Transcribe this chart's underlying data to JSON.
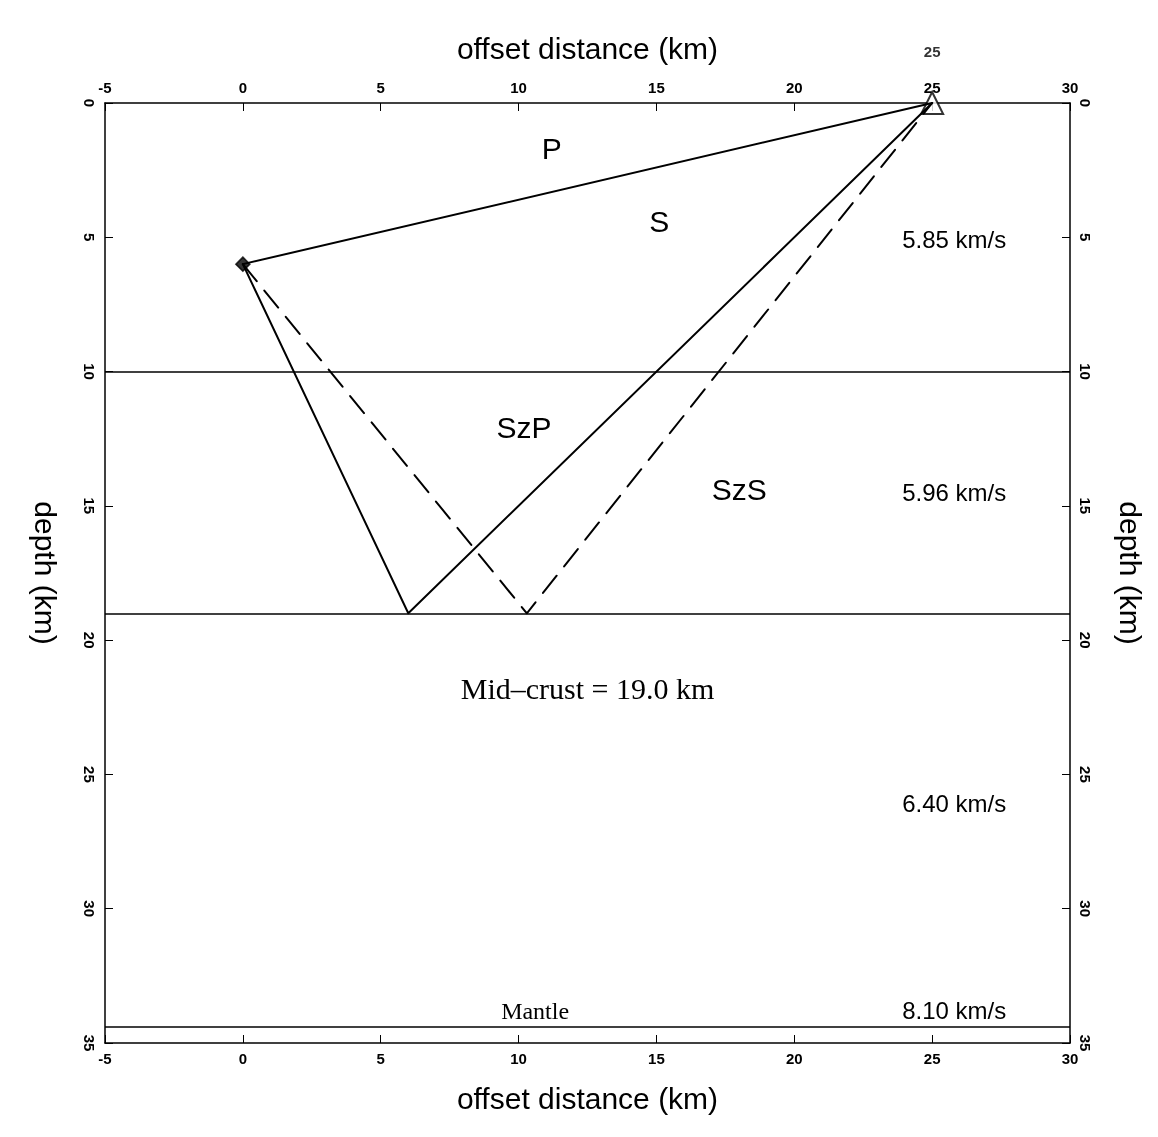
{
  "chart_data": {
    "type": "line",
    "xlabel": "offset distance (km)",
    "x2label": "offset distance (km)",
    "ylabel": "depth (km)",
    "y2label": "depth (km)",
    "xlim": [
      -5,
      30
    ],
    "xticks": [
      -5,
      0,
      5,
      10,
      15,
      20,
      25,
      30
    ],
    "x2lim": [
      -5,
      30
    ],
    "x2ticks": [
      -5,
      0,
      5,
      10,
      15,
      20,
      25,
      30
    ],
    "ylim": [
      35,
      0
    ],
    "yticks": [
      0,
      5,
      10,
      15,
      20,
      25,
      30,
      35
    ],
    "y2lim": [
      35,
      0
    ],
    "y2ticks": [
      0,
      5,
      10,
      15,
      20,
      25,
      30,
      35
    ],
    "grid": false,
    "legend": false,
    "line_style": "solid",
    "series": [
      {
        "color": "#000000",
        "x": [
          0,
          25
        ],
        "values": [
          6,
          0
        ]
      },
      {
        "color": "#000000",
        "x": [
          0,
          6,
          25
        ],
        "values": [
          6,
          19,
          0
        ]
      },
      {
        "color": "#000000",
        "x": [
          0,
          10.3,
          25
        ],
        "values": [
          6,
          19,
          0
        ],
        "line_style": "dashed"
      },
      {
        "type": "scatter",
        "color": "#000000",
        "x": [
          0
        ],
        "values": [
          6
        ],
        "marker": "diamond"
      },
      {
        "type": "scatter",
        "name": "25",
        "color": "#000000",
        "x": [
          25
        ],
        "values": [
          0
        ],
        "marker": "triangle"
      }
    ],
    "ref_lines": [
      {
        "axis": "y",
        "value": 10,
        "color": "#000000"
      },
      {
        "axis": "y",
        "value": 19,
        "label": "Mid–crust = 19.0 km",
        "color": "#000000"
      },
      {
        "axis": "y",
        "value": 34.4,
        "color": "#000000"
      }
    ],
    "annotations": [
      "P",
      "S",
      "SzP",
      "SzS",
      "5.85 km/s",
      "5.96 km/s",
      "6.40 km/s",
      "8.10 km/s",
      "Mantle"
    ]
  }
}
